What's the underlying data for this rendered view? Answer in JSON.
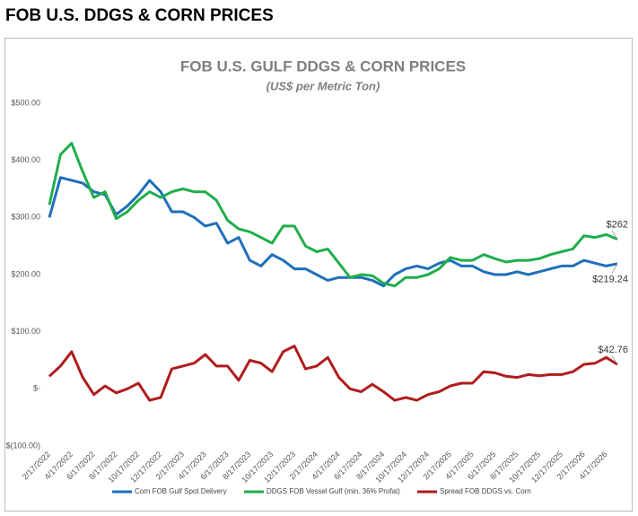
{
  "header": {
    "title": "FOB U.S. DDGS & CORN PRICES"
  },
  "chart_data": {
    "type": "line",
    "title": "FOB U.S. GULF DDGS & CORN PRICES",
    "subtitle": "(US$ per Metric Ton)",
    "categories": [
      "2/17/2022",
      null,
      "4/17/2022",
      null,
      "6/17/2022",
      null,
      "8/17/2022",
      null,
      "10/17/2022",
      null,
      "12/17/2022",
      null,
      "2/17/2023",
      null,
      "4/17/2023",
      null,
      "6/17/2023",
      null,
      "8/17/2023",
      null,
      "10/17/2023",
      null,
      "12/17/2023",
      null,
      "2/17/2024",
      null,
      "4/17/2024",
      null,
      "6/17/2024",
      null,
      "8/17/2024",
      null,
      "10/17/2024",
      null,
      "12/17/2024",
      null,
      "2/17/2025",
      null,
      "4/17/2025",
      null,
      "6/17/2025",
      null,
      "8/17/2025",
      null,
      "10/17/2025",
      null,
      "12/17/2025",
      null,
      "2/17/2026",
      null,
      "4/17/2026",
      null
    ],
    "series": [
      {
        "name": "Corn FOB Gulf Spot Delivery",
        "color": "#1f6fba",
        "values": [
          300,
          370,
          365,
          360,
          345,
          340,
          305,
          320,
          340,
          365,
          345,
          310,
          310,
          300,
          285,
          290,
          255,
          265,
          225,
          215,
          235,
          225,
          210,
          210,
          200,
          190,
          195,
          195,
          195,
          190,
          180,
          200,
          210,
          215,
          210,
          220,
          225,
          215,
          215,
          205,
          200,
          200,
          205,
          200,
          205,
          210,
          215,
          215,
          225,
          220,
          215,
          219.24
        ],
        "value_labels": [
          null,
          null,
          null,
          null,
          null,
          null,
          null,
          null,
          null,
          null,
          null,
          null,
          null,
          null,
          null,
          null,
          null,
          null,
          null,
          null,
          null,
          null,
          null,
          null,
          null,
          null,
          null,
          null,
          null,
          null,
          null,
          null,
          null,
          null,
          null,
          null,
          null,
          null,
          null,
          null,
          null,
          null,
          null,
          null,
          null,
          null,
          null,
          null,
          null,
          null,
          null,
          "$219.24"
        ]
      },
      {
        "name": "DDGS FOB Vessel Gulf (min. 36% Profat)",
        "color": "#1fae4b",
        "values": [
          322,
          410,
          430,
          380,
          335,
          345,
          298,
          310,
          330,
          345,
          335,
          345,
          350,
          345,
          345,
          330,
          295,
          280,
          275,
          265,
          255,
          285,
          285,
          250,
          240,
          245,
          220,
          195,
          200,
          198,
          185,
          180,
          195,
          195,
          200,
          210,
          230,
          225,
          225,
          235,
          228,
          222,
          225,
          225,
          228,
          235,
          240,
          245,
          268,
          265,
          270,
          262
        ],
        "value_labels": [
          null,
          null,
          null,
          null,
          null,
          null,
          null,
          null,
          null,
          null,
          null,
          null,
          null,
          null,
          null,
          null,
          null,
          null,
          null,
          null,
          null,
          null,
          null,
          null,
          null,
          null,
          null,
          null,
          null,
          null,
          null,
          null,
          null,
          null,
          null,
          null,
          null,
          null,
          null,
          null,
          null,
          null,
          null,
          null,
          null,
          null,
          null,
          null,
          null,
          null,
          null,
          "$262"
        ]
      },
      {
        "name": "Spread FOB DDGS vs. Corn",
        "color": "#b01c1c",
        "values": [
          22,
          40,
          65,
          20,
          -10,
          5,
          -7,
          0,
          10,
          -20,
          -15,
          35,
          40,
          45,
          60,
          40,
          40,
          15,
          50,
          45,
          30,
          65,
          75,
          35,
          40,
          55,
          20,
          0,
          -5,
          8,
          -5,
          -20,
          -15,
          -20,
          -10,
          -5,
          5,
          10,
          10,
          30,
          28,
          22,
          20,
          25,
          23,
          25,
          25,
          30,
          43,
          45,
          55,
          42.76
        ],
        "value_labels": [
          null,
          null,
          null,
          null,
          null,
          null,
          null,
          null,
          null,
          null,
          null,
          null,
          null,
          null,
          null,
          null,
          null,
          null,
          null,
          null,
          null,
          null,
          null,
          null,
          null,
          null,
          null,
          null,
          null,
          null,
          null,
          null,
          null,
          null,
          null,
          null,
          null,
          null,
          null,
          null,
          null,
          null,
          null,
          null,
          null,
          null,
          null,
          null,
          null,
          null,
          null,
          "$42.76"
        ]
      }
    ],
    "ylim": [
      -100,
      500
    ],
    "yticks": [
      {
        "value": -100,
        "label": "$(100.00)"
      },
      {
        "value": 0,
        "label": "$-"
      },
      {
        "value": 100,
        "label": "$100.00"
      },
      {
        "value": 200,
        "label": "$200.00"
      },
      {
        "value": 300,
        "label": "$300.00"
      },
      {
        "value": 400,
        "label": "$400.00"
      },
      {
        "value": 500,
        "label": "$500.00"
      }
    ],
    "grid": false,
    "legend": "bottom"
  }
}
